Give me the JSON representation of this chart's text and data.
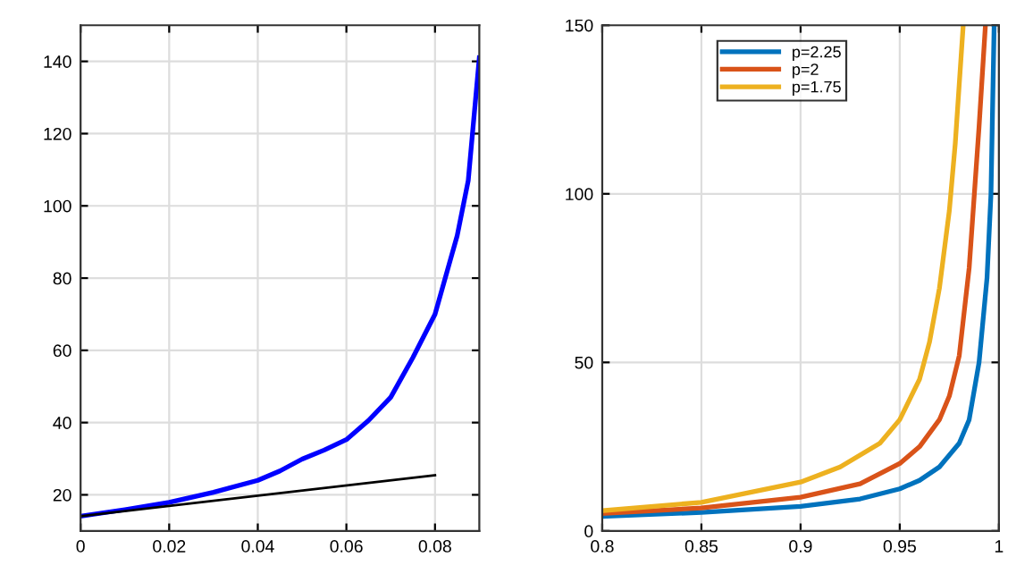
{
  "chart_data": [
    {
      "type": "line",
      "xlim": [
        0,
        0.09
      ],
      "ylim": [
        10,
        150
      ],
      "xticks": [
        0,
        0.02,
        0.04,
        0.06,
        0.08
      ],
      "yticks": [
        20,
        40,
        60,
        80,
        100,
        120,
        140
      ],
      "grid": true,
      "legend": false,
      "series": [
        {
          "color": "#0000ff",
          "x": [
            0,
            0.01,
            0.02,
            0.03,
            0.04,
            0.045,
            0.05,
            0.055,
            0.06,
            0.065,
            0.07,
            0.075,
            0.08,
            0.085,
            0.0875,
            0.09
          ],
          "values": [
            14.1,
            15.9,
            17.9,
            20.7,
            24,
            26.6,
            29.9,
            32.4,
            35.3,
            40.6,
            47,
            58,
            70,
            91.7,
            107,
            141
          ]
        },
        {
          "color": "#000000",
          "x": [
            0,
            0.08
          ],
          "values": [
            14.1,
            25.4
          ]
        }
      ]
    },
    {
      "type": "line",
      "xlim": [
        0.8,
        1
      ],
      "ylim": [
        0,
        150
      ],
      "xticks": [
        0.8,
        0.85,
        0.9,
        0.95,
        1
      ],
      "yticks": [
        0,
        50,
        100,
        150
      ],
      "grid": true,
      "legend": "top left",
      "series": [
        {
          "name": "p=2.25",
          "color": "#0072bd",
          "x": [
            0.8,
            0.85,
            0.9,
            0.93,
            0.95,
            0.96,
            0.97,
            0.98,
            0.985,
            0.99,
            0.994,
            0.996,
            0.9976
          ],
          "values": [
            4.3,
            5.5,
            7.3,
            9.5,
            12.5,
            15,
            19,
            26,
            33,
            50,
            75,
            100,
            150
          ]
        },
        {
          "name": "p=2",
          "color": "#d95319",
          "x": [
            0.8,
            0.85,
            0.9,
            0.93,
            0.95,
            0.96,
            0.97,
            0.975,
            0.98,
            0.985,
            0.99,
            0.9932
          ],
          "values": [
            5.2,
            6.8,
            10,
            14,
            20,
            25,
            33,
            40,
            52,
            78,
            120,
            150
          ]
        },
        {
          "name": "p=1.75",
          "color": "#edb120",
          "x": [
            0.8,
            0.85,
            0.9,
            0.92,
            0.94,
            0.95,
            0.96,
            0.965,
            0.97,
            0.975,
            0.978,
            0.982
          ],
          "values": [
            6,
            8.5,
            14.5,
            19,
            26,
            33,
            45,
            56,
            72,
            95,
            115,
            150
          ]
        }
      ]
    }
  ]
}
